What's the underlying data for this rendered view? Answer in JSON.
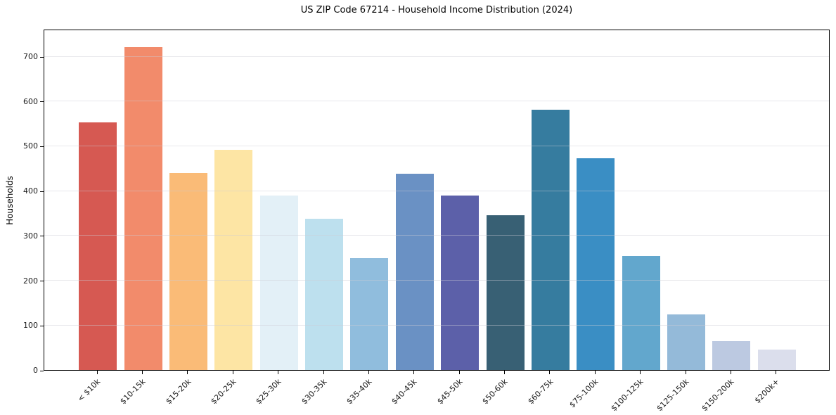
{
  "chart_data": {
    "type": "bar",
    "title": "US ZIP Code 67214 - Household Income Distribution (2024)",
    "xlabel": "",
    "ylabel": "Households",
    "categories": [
      "< $10k",
      "$10-15k",
      "$15-20k",
      "$20-25k",
      "$25-30k",
      "$30-35k",
      "$35-40k",
      "$40-45k",
      "$45-50k",
      "$50-60k",
      "$60-75k",
      "$75-100k",
      "$100-125k",
      "$125-150k",
      "$150-200k",
      "$200k+"
    ],
    "values": [
      553,
      720,
      440,
      492,
      389,
      337,
      250,
      438,
      390,
      345,
      580,
      472,
      255,
      124,
      65,
      45
    ],
    "bar_colors": [
      "#d65952",
      "#f28b6b",
      "#fabb77",
      "#fde5a4",
      "#e3f0f7",
      "#bde0ee",
      "#90bddd",
      "#6a91c4",
      "#5c60a9",
      "#386074",
      "#367c9f",
      "#3a8ec4",
      "#62a7cd",
      "#94bad9",
      "#bcc9e1",
      "#dbdeec"
    ],
    "ylim": [
      0,
      761
    ],
    "yticks": [
      0,
      100,
      200,
      300,
      400,
      500,
      600,
      700
    ],
    "grid": "horizontal-only, light gray, drawn above bars",
    "legend_position": "none",
    "frame": "full box, black spines",
    "background_color": "#ffffff"
  }
}
